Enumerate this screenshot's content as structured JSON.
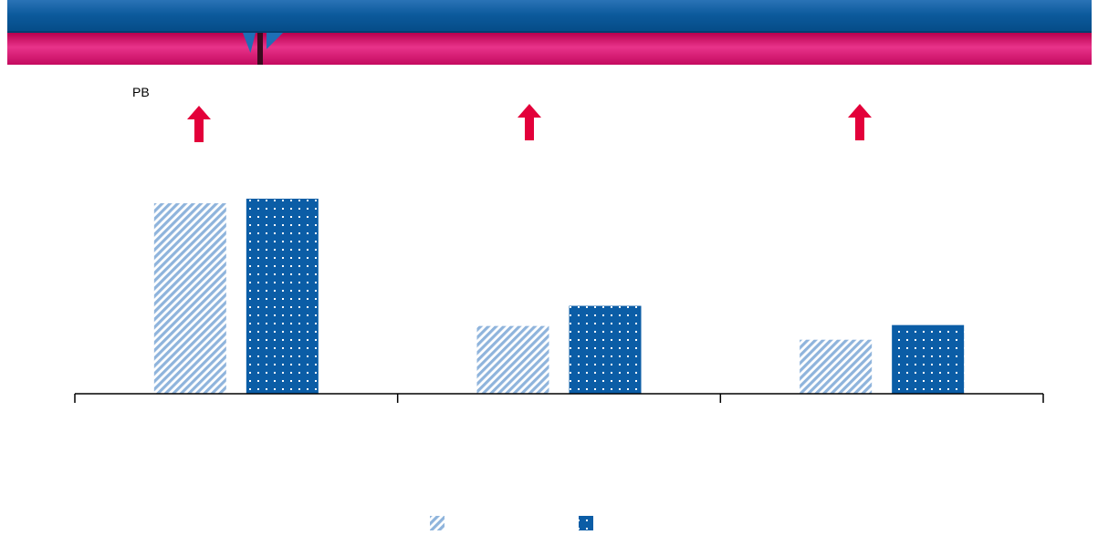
{
  "header": {
    "label": "PB"
  },
  "colors": {
    "top_band": "#0c5a9c",
    "pink_band": "#d6196f",
    "arrow": "#e3003a",
    "series_1": "#8fb4dc",
    "series_2": "#0b5da6"
  },
  "indicators": [
    {
      "icon": "up-arrow-icon"
    },
    {
      "icon": "up-arrow-icon"
    },
    {
      "icon": "up-arrow-icon"
    }
  ],
  "chart_data": {
    "type": "bar",
    "categories": [
      "",
      "",
      ""
    ],
    "series": [
      {
        "values": [
          208,
          74,
          59
        ],
        "pattern": "diagonal-hatch",
        "color": "#8fb4dc"
      },
      {
        "values": [
          213,
          96,
          75
        ],
        "pattern": "dots",
        "color": "#0b5da6"
      }
    ],
    "ylim": [
      0,
      215
    ],
    "grid": false,
    "legend_position": "bottom-center"
  }
}
